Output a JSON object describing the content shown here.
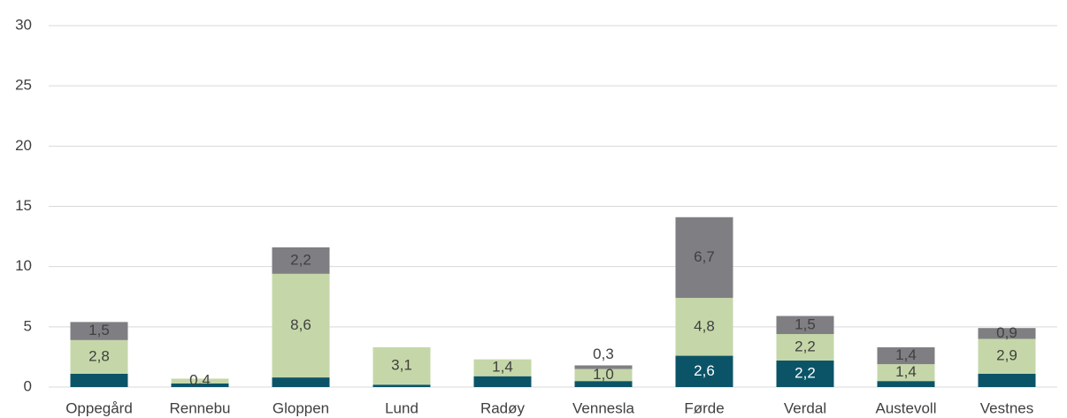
{
  "chart_data": {
    "type": "stacked_bar",
    "categories": [
      "Oppegård",
      "Rennebu",
      "Gloppen",
      "Lund",
      "Radøy",
      "Vennesla",
      "Førde",
      "Verdal",
      "Austevoll",
      "Vestnes"
    ],
    "series": [
      {
        "color": "#0b5468",
        "values": [
          1.1,
          0.3,
          0.8,
          0.2,
          0.9,
          0.5,
          2.6,
          2.2,
          0.5,
          1.1
        ],
        "value_labels": [
          null,
          null,
          null,
          null,
          null,
          null,
          "2,6",
          "2,2",
          null,
          null
        ]
      },
      {
        "color": "#c5d7a8",
        "values": [
          2.8,
          0.4,
          8.6,
          3.1,
          1.4,
          1.0,
          4.8,
          2.2,
          1.4,
          2.9
        ],
        "value_labels": [
          "2,8",
          "0,4",
          "8,6",
          "3,1",
          "1,4",
          "1,0",
          "4,8",
          "2,2",
          "1,4",
          "2,9"
        ]
      },
      {
        "color": "#7f7f83",
        "values": [
          1.5,
          0,
          2.2,
          0,
          0,
          0.3,
          6.7,
          1.5,
          1.4,
          0.9
        ],
        "value_labels": [
          "1,5",
          null,
          "2,2",
          null,
          null,
          "0,3",
          "6,7",
          "1,5",
          "1,4",
          "0,9"
        ]
      }
    ],
    "ylim": [
      0,
      30
    ],
    "yticks": [
      0,
      5,
      10,
      15,
      20,
      25,
      30
    ],
    "grid": true
  }
}
